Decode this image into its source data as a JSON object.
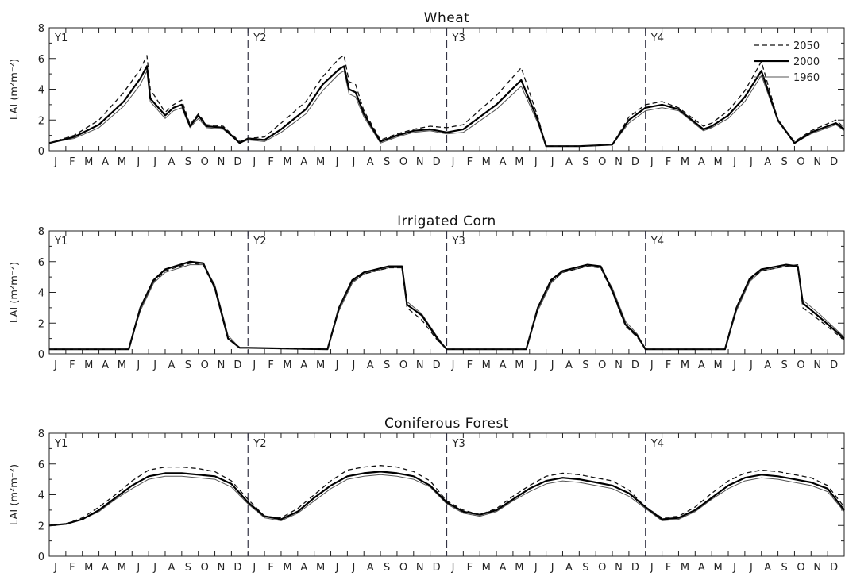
{
  "chart_data": [
    {
      "type": "line",
      "title": "Wheat",
      "ylabel": "LAI (m²m⁻²)",
      "ylim": [
        0,
        8
      ],
      "yticks": [
        "0",
        "2",
        "4",
        "6",
        "8"
      ],
      "month_ticks": [
        "J",
        "F",
        "M",
        "A",
        "M",
        "J",
        "J",
        "A",
        "S",
        "O",
        "N",
        "D"
      ],
      "year_labels": [
        "Y1",
        "Y2",
        "Y3",
        "Y4"
      ],
      "legend": {
        "placement": "top-right",
        "entries": [
          "2050",
          "2000",
          "1960"
        ]
      },
      "series": [
        {
          "name": "2050",
          "style": "dashed",
          "x": [
            0,
            1.5,
            3,
            4.5,
            5.5,
            5.9,
            6.1,
            7,
            7.5,
            8,
            8.5,
            9,
            9.5,
            10.5,
            11.5,
            12,
            13,
            14,
            15.5,
            16.5,
            17.5,
            17.8,
            18.1,
            18.5,
            19,
            20,
            21,
            22,
            23,
            24,
            25,
            27,
            28.5,
            29.5,
            30,
            30.5,
            32,
            34,
            35,
            36,
            37,
            38,
            39.5,
            40,
            41,
            42,
            43,
            44,
            45,
            46,
            47.5,
            48
          ],
          "values": [
            0.5,
            1.0,
            2.0,
            3.8,
            5.3,
            6.2,
            4.0,
            2.5,
            3.0,
            3.3,
            1.7,
            2.4,
            1.7,
            1.6,
            0.6,
            0.8,
            0.9,
            1.8,
            3.2,
            4.8,
            6.0,
            6.2,
            4.5,
            4.3,
            2.6,
            0.7,
            1.1,
            1.4,
            1.6,
            1.5,
            1.7,
            3.6,
            5.4,
            2.2,
            0.3,
            0.3,
            0.3,
            0.4,
            2.2,
            3.0,
            3.2,
            2.8,
            1.6,
            1.8,
            2.6,
            3.9,
            5.8,
            2.0,
            0.6,
            1.3,
            2.0,
            1.5
          ]
        },
        {
          "name": "2000",
          "style": "solid-bold",
          "x": [
            0,
            1.5,
            3,
            4.5,
            5.5,
            5.9,
            6.1,
            7,
            7.5,
            8,
            8.5,
            9,
            9.5,
            10.5,
            11.5,
            12,
            13,
            14,
            15.5,
            16.5,
            17.5,
            17.8,
            18.1,
            18.5,
            19,
            20,
            21,
            22,
            23,
            24,
            25,
            27,
            28.5,
            29.5,
            30,
            30.5,
            32,
            34,
            35,
            36,
            37,
            38,
            39.5,
            40,
            41,
            42,
            43,
            44,
            45,
            46,
            47.5,
            48
          ],
          "values": [
            0.5,
            0.9,
            1.7,
            3.2,
            4.7,
            5.5,
            3.4,
            2.3,
            2.8,
            3.0,
            1.6,
            2.3,
            1.6,
            1.5,
            0.5,
            0.8,
            0.7,
            1.4,
            2.7,
            4.3,
            5.3,
            5.5,
            4.0,
            3.8,
            2.4,
            0.6,
            1.0,
            1.3,
            1.4,
            1.2,
            1.4,
            3.0,
            4.6,
            2.0,
            0.3,
            0.3,
            0.3,
            0.4,
            2.0,
            2.8,
            3.0,
            2.7,
            1.4,
            1.6,
            2.3,
            3.5,
            5.2,
            2.0,
            0.5,
            1.2,
            1.8,
            1.4
          ]
        },
        {
          "name": "1960",
          "style": "solid-thin",
          "x": [
            0,
            1.5,
            3,
            4.5,
            5.5,
            5.9,
            6.1,
            7,
            7.5,
            8,
            8.5,
            9,
            9.5,
            10.5,
            11.5,
            12,
            13,
            14,
            15.5,
            16.5,
            17.5,
            17.8,
            18.1,
            18.5,
            19,
            20,
            21,
            22,
            23,
            24,
            25,
            27,
            28.5,
            29.5,
            30,
            30.5,
            32,
            34,
            35,
            36,
            37,
            38,
            39.5,
            40,
            41,
            42,
            43,
            44,
            45,
            46,
            47.5,
            48
          ],
          "values": [
            0.5,
            0.8,
            1.5,
            2.9,
            4.3,
            5.2,
            3.2,
            2.1,
            2.6,
            2.8,
            1.5,
            2.1,
            1.5,
            1.4,
            0.5,
            0.7,
            0.6,
            1.2,
            2.4,
            3.9,
            5.0,
            5.2,
            3.7,
            3.5,
            2.2,
            0.5,
            0.9,
            1.2,
            1.3,
            1.1,
            1.2,
            2.7,
            4.2,
            1.8,
            0.3,
            0.3,
            0.3,
            0.4,
            1.8,
            2.6,
            2.8,
            2.6,
            1.3,
            1.5,
            2.1,
            3.2,
            4.9,
            1.9,
            0.5,
            1.1,
            1.7,
            1.3
          ]
        }
      ]
    },
    {
      "type": "line",
      "title": "Irrigated Corn",
      "ylabel": "LAI (m²m⁻²)",
      "ylim": [
        0,
        8
      ],
      "yticks": [
        "0",
        "2",
        "4",
        "6",
        "8"
      ],
      "month_ticks": [
        "J",
        "F",
        "M",
        "A",
        "M",
        "J",
        "J",
        "A",
        "S",
        "O",
        "N",
        "D"
      ],
      "year_labels": [
        "Y1",
        "Y2",
        "Y3",
        "Y4"
      ],
      "series": [
        {
          "name": "2050",
          "style": "dashed",
          "x": [
            0,
            4.8,
            5.5,
            6.3,
            7,
            8.5,
            9.3,
            10,
            10.8,
            11.5,
            12,
            16.8,
            17.5,
            18.3,
            19,
            20.5,
            21.3,
            21.6,
            22.5,
            23.5,
            24,
            28.8,
            29.5,
            30.3,
            31,
            32.5,
            33.3,
            34,
            34.8,
            35.5,
            36,
            40.8,
            41.5,
            42.3,
            43,
            44.5,
            45.2,
            45.5,
            46.5,
            48
          ],
          "values": [
            0.3,
            0.3,
            3.0,
            4.7,
            5.4,
            5.9,
            5.8,
            4.2,
            1.0,
            0.4,
            0.4,
            0.3,
            3.0,
            4.7,
            5.2,
            5.6,
            5.6,
            3.0,
            2.2,
            0.8,
            0.3,
            0.3,
            3.0,
            4.7,
            5.3,
            5.7,
            5.6,
            4.0,
            1.8,
            1.1,
            0.3,
            0.3,
            3.0,
            4.8,
            5.4,
            5.7,
            5.8,
            3.0,
            2.2,
            0.9
          ]
        },
        {
          "name": "2000",
          "style": "solid-bold",
          "x": [
            0,
            4.8,
            5.5,
            6.3,
            7,
            8.5,
            9.3,
            10,
            10.8,
            11.5,
            12,
            16.8,
            17.5,
            18.3,
            19,
            20.5,
            21.3,
            21.6,
            22.5,
            23.5,
            24,
            28.8,
            29.5,
            30.3,
            31,
            32.5,
            33.3,
            34,
            34.8,
            35.5,
            36,
            40.8,
            41.5,
            42.3,
            43,
            44.5,
            45.2,
            45.5,
            46.5,
            48
          ],
          "values": [
            0.3,
            0.3,
            3.0,
            4.8,
            5.5,
            6.0,
            5.9,
            4.3,
            1.0,
            0.4,
            0.4,
            0.3,
            3.0,
            4.8,
            5.3,
            5.7,
            5.7,
            3.2,
            2.5,
            0.9,
            0.3,
            0.3,
            3.0,
            4.8,
            5.4,
            5.8,
            5.7,
            4.1,
            1.9,
            1.2,
            0.3,
            0.3,
            3.0,
            4.9,
            5.5,
            5.8,
            5.7,
            3.3,
            2.4,
            1.0
          ]
        },
        {
          "name": "1960",
          "style": "solid-thin",
          "x": [
            0,
            4.8,
            5.5,
            6.3,
            7,
            8.5,
            9.3,
            10,
            10.8,
            11.5,
            12,
            16.8,
            17.5,
            18.3,
            19,
            20.5,
            21.3,
            21.6,
            22.5,
            23.5,
            24,
            28.8,
            29.5,
            30.3,
            31,
            32.5,
            33.3,
            34,
            34.8,
            35.5,
            36,
            40.8,
            41.5,
            42.3,
            43,
            44.5,
            45.2,
            45.5,
            46.5,
            48
          ],
          "values": [
            0.3,
            0.3,
            2.8,
            4.6,
            5.3,
            5.8,
            5.8,
            4.5,
            1.2,
            0.4,
            0.4,
            0.3,
            2.8,
            4.6,
            5.2,
            5.6,
            5.6,
            3.4,
            2.6,
            1.0,
            0.3,
            0.3,
            2.8,
            4.6,
            5.3,
            5.7,
            5.6,
            4.3,
            2.1,
            1.3,
            0.3,
            0.3,
            2.8,
            4.7,
            5.4,
            5.7,
            5.7,
            3.5,
            2.6,
            1.1
          ]
        }
      ]
    },
    {
      "type": "line",
      "title": "Coniferous Forest",
      "ylabel": "LAI (m²m⁻²)",
      "ylim": [
        0,
        8
      ],
      "yticks": [
        "0",
        "2",
        "4",
        "6",
        "8"
      ],
      "month_ticks": [
        "J",
        "F",
        "M",
        "A",
        "M",
        "J",
        "J",
        "A",
        "S",
        "O",
        "N",
        "D"
      ],
      "year_labels": [
        "Y1",
        "Y2",
        "Y3",
        "Y4"
      ],
      "series": [
        {
          "name": "2050",
          "style": "dashed",
          "x": [
            0,
            1,
            2,
            3,
            4,
            5,
            6,
            7,
            8,
            9,
            10,
            11,
            12,
            13,
            14,
            15,
            16,
            17,
            18,
            19,
            20,
            21,
            22,
            23,
            24,
            25,
            26,
            27,
            28,
            29,
            30,
            31,
            32,
            33,
            34,
            35,
            36,
            37,
            38,
            39,
            40,
            41,
            42,
            43,
            44,
            45,
            46,
            47,
            48
          ],
          "values": [
            2.0,
            2.1,
            2.5,
            3.2,
            4.0,
            4.9,
            5.6,
            5.8,
            5.8,
            5.7,
            5.5,
            4.9,
            3.7,
            2.6,
            2.5,
            3.1,
            4.0,
            4.9,
            5.6,
            5.8,
            5.9,
            5.8,
            5.5,
            4.9,
            3.6,
            3.0,
            2.7,
            3.1,
            3.9,
            4.6,
            5.2,
            5.4,
            5.3,
            5.1,
            4.9,
            4.3,
            3.2,
            2.5,
            2.6,
            3.2,
            4.1,
            4.9,
            5.4,
            5.6,
            5.5,
            5.3,
            5.1,
            4.6,
            3.2
          ]
        },
        {
          "name": "2000",
          "style": "solid-bold",
          "x": [
            0,
            1,
            2,
            3,
            4,
            5,
            6,
            7,
            8,
            9,
            10,
            11,
            12,
            13,
            14,
            15,
            16,
            17,
            18,
            19,
            20,
            21,
            22,
            23,
            24,
            25,
            26,
            27,
            28,
            29,
            30,
            31,
            32,
            33,
            34,
            35,
            36,
            37,
            38,
            39,
            40,
            41,
            42,
            43,
            44,
            45,
            46,
            47,
            48
          ],
          "values": [
            2.0,
            2.1,
            2.4,
            3.0,
            3.8,
            4.6,
            5.2,
            5.4,
            5.4,
            5.3,
            5.2,
            4.7,
            3.5,
            2.6,
            2.4,
            2.9,
            3.8,
            4.6,
            5.2,
            5.4,
            5.5,
            5.4,
            5.2,
            4.6,
            3.5,
            2.9,
            2.7,
            3.0,
            3.7,
            4.4,
            4.9,
            5.1,
            5.0,
            4.8,
            4.6,
            4.1,
            3.2,
            2.4,
            2.5,
            3.0,
            3.8,
            4.6,
            5.1,
            5.3,
            5.2,
            5.0,
            4.8,
            4.4,
            3.0
          ]
        },
        {
          "name": "1960",
          "style": "solid-thin",
          "x": [
            0,
            1,
            2,
            3,
            4,
            5,
            6,
            7,
            8,
            9,
            10,
            11,
            12,
            13,
            14,
            15,
            16,
            17,
            18,
            19,
            20,
            21,
            22,
            23,
            24,
            25,
            26,
            27,
            28,
            29,
            30,
            31,
            32,
            33,
            34,
            35,
            36,
            37,
            38,
            39,
            40,
            41,
            42,
            43,
            44,
            45,
            46,
            47,
            48
          ],
          "values": [
            2.0,
            2.1,
            2.4,
            2.9,
            3.7,
            4.4,
            5.0,
            5.2,
            5.2,
            5.1,
            5.0,
            4.5,
            3.4,
            2.5,
            2.3,
            2.8,
            3.6,
            4.4,
            5.0,
            5.2,
            5.3,
            5.2,
            5.0,
            4.5,
            3.4,
            2.8,
            2.6,
            2.9,
            3.6,
            4.2,
            4.7,
            4.9,
            4.8,
            4.6,
            4.4,
            3.9,
            3.1,
            2.3,
            2.4,
            2.9,
            3.7,
            4.4,
            4.9,
            5.1,
            5.0,
            4.8,
            4.6,
            4.2,
            2.9
          ]
        }
      ]
    }
  ],
  "colors": {
    "axis": "#222222",
    "year_divider": "#333344",
    "series_2050": "#111111",
    "series_2000": "#000000",
    "series_1960": "#555555"
  }
}
